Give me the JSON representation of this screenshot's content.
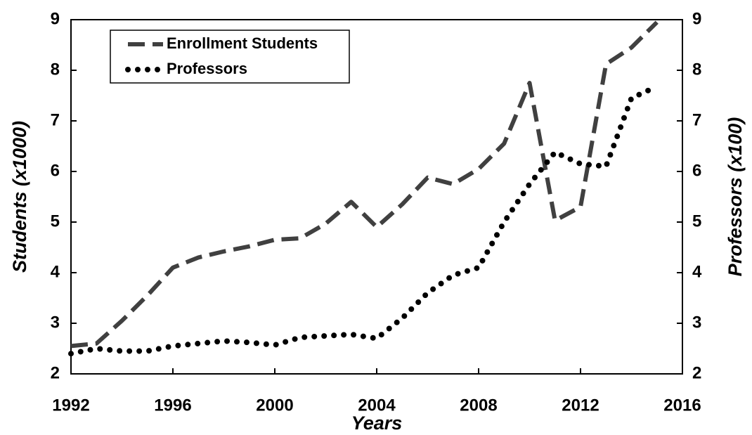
{
  "chart_data": {
    "type": "line",
    "xlabel": "Years",
    "ylabel": "Students (x1000)",
    "y2label": "Professors (x100)",
    "x": [
      1992,
      1993,
      1994,
      1995,
      1996,
      1997,
      1998,
      1999,
      2000,
      2001,
      2002,
      2003,
      2004,
      2005,
      2006,
      2007,
      2008,
      2009,
      2010,
      2011,
      2012,
      2013,
      2014,
      2015
    ],
    "series": [
      {
        "name": "Enrollment Students",
        "color": "#404040",
        "style": "dashed",
        "values": [
          2.55,
          2.6,
          3.05,
          3.55,
          4.1,
          4.3,
          4.42,
          4.52,
          4.65,
          4.68,
          4.97,
          5.4,
          4.9,
          5.35,
          5.88,
          5.75,
          6.05,
          6.55,
          7.75,
          5.03,
          5.3,
          8.12,
          8.45,
          8.95
        ]
      },
      {
        "name": "Professors",
        "color": "#000000",
        "style": "dotted",
        "axis": "y2",
        "values": [
          2.4,
          2.5,
          2.45,
          2.45,
          2.55,
          2.6,
          2.65,
          2.62,
          2.57,
          2.72,
          2.75,
          2.78,
          2.7,
          3.1,
          3.6,
          3.95,
          4.1,
          5.0,
          5.75,
          6.38,
          6.15,
          6.1,
          7.45,
          7.68
        ]
      }
    ],
    "xlim": [
      1992,
      2016
    ],
    "xticks": [
      1992,
      1996,
      2000,
      2004,
      2008,
      2012,
      2016
    ],
    "ylim": [
      2,
      9
    ],
    "yticks": [
      2,
      3,
      4,
      5,
      6,
      7,
      8,
      9
    ],
    "y2lim": [
      2,
      9
    ],
    "y2ticks": [
      2,
      3,
      4,
      5,
      6,
      7,
      8,
      9
    ],
    "legend": "top-left"
  }
}
